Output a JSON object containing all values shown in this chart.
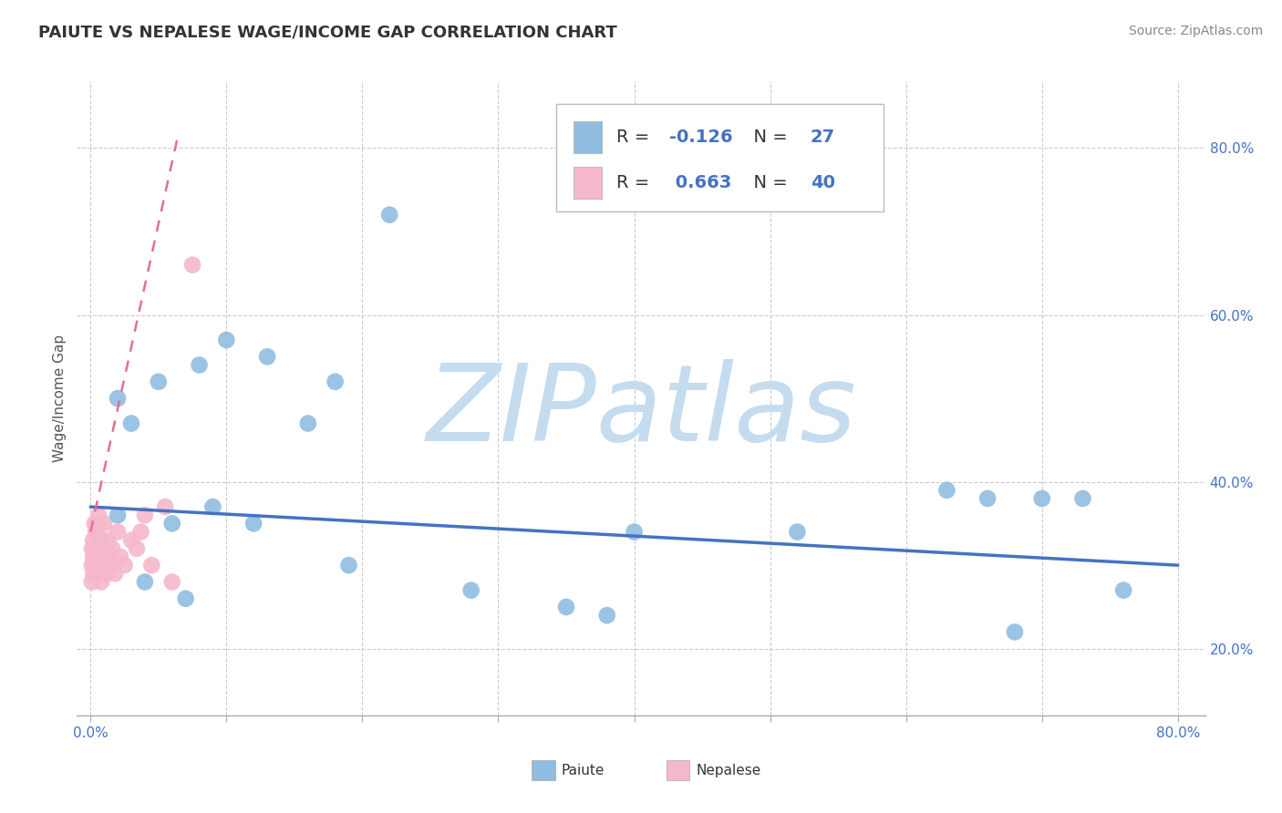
{
  "title": "PAIUTE VS NEPALESE WAGE/INCOME GAP CORRELATION CHART",
  "source": "Source: ZipAtlas.com",
  "ylabel": "Wage/Income Gap",
  "xlim": [
    -0.01,
    0.82
  ],
  "ylim": [
    0.12,
    0.88
  ],
  "yticks": [
    0.2,
    0.4,
    0.6,
    0.8
  ],
  "xticks": [
    0.0,
    0.1,
    0.2,
    0.3,
    0.4,
    0.5,
    0.6,
    0.7,
    0.8
  ],
  "background_color": "#ffffff",
  "grid_color": "#cccccc",
  "paiute_color": "#90bde0",
  "nepalese_color": "#f5b8cb",
  "paiute_line_color": "#4472c4",
  "nepalese_line_color": "#e07090",
  "tick_label_color": "#4472c4",
  "legend_text_color": "#4472c4",
  "legend_neg_color": "#e03060",
  "paiute_R": -0.126,
  "paiute_N": 27,
  "nepalese_R": 0.663,
  "nepalese_N": 40,
  "watermark": "ZIPatlas",
  "watermark_color": "#c5dcef",
  "paiute_x": [
    0.02,
    0.03,
    0.04,
    0.05,
    0.07,
    0.08,
    0.09,
    0.1,
    0.12,
    0.13,
    0.16,
    0.18,
    0.19,
    0.22,
    0.28,
    0.35,
    0.38,
    0.4,
    0.52,
    0.63,
    0.66,
    0.68,
    0.7,
    0.73,
    0.76,
    0.06,
    0.02
  ],
  "paiute_y": [
    0.5,
    0.47,
    0.28,
    0.52,
    0.26,
    0.54,
    0.37,
    0.57,
    0.35,
    0.55,
    0.47,
    0.52,
    0.3,
    0.72,
    0.27,
    0.25,
    0.24,
    0.34,
    0.34,
    0.39,
    0.38,
    0.22,
    0.38,
    0.38,
    0.27,
    0.35,
    0.36
  ],
  "nepalese_x": [
    0.001,
    0.001,
    0.001,
    0.002,
    0.002,
    0.002,
    0.003,
    0.003,
    0.003,
    0.004,
    0.004,
    0.004,
    0.005,
    0.005,
    0.006,
    0.006,
    0.007,
    0.007,
    0.008,
    0.008,
    0.009,
    0.01,
    0.011,
    0.012,
    0.013,
    0.014,
    0.015,
    0.016,
    0.018,
    0.02,
    0.022,
    0.025,
    0.03,
    0.034,
    0.037,
    0.04,
    0.045,
    0.055,
    0.06,
    0.075
  ],
  "nepalese_y": [
    0.32,
    0.3,
    0.28,
    0.33,
    0.31,
    0.29,
    0.35,
    0.32,
    0.3,
    0.34,
    0.31,
    0.29,
    0.35,
    0.32,
    0.36,
    0.3,
    0.33,
    0.3,
    0.32,
    0.28,
    0.31,
    0.35,
    0.32,
    0.29,
    0.33,
    0.31,
    0.3,
    0.32,
    0.29,
    0.34,
    0.31,
    0.3,
    0.33,
    0.32,
    0.34,
    0.36,
    0.3,
    0.37,
    0.28,
    0.66
  ],
  "nepalese_outlier_x": [
    0.055
  ],
  "nepalese_outlier_y": [
    0.66
  ],
  "paiute_line_x0": 0.0,
  "paiute_line_x1": 0.8,
  "paiute_line_y0": 0.37,
  "paiute_line_y1": 0.3,
  "nepalese_line_x0": 0.0,
  "nepalese_line_x1": 0.065,
  "nepalese_line_y0": 0.34,
  "nepalese_line_y1": 0.82
}
